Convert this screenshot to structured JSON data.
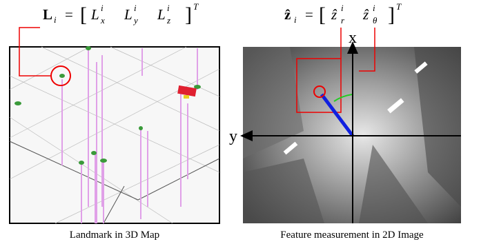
{
  "left_equation": {
    "lhs": "L",
    "lhs_sub": "i",
    "equals": "=",
    "open": "[",
    "close": "]",
    "transpose": "T",
    "elements": [
      {
        "base": "L",
        "sub": "x",
        "sup": "i"
      },
      {
        "base": "L",
        "sub": "y",
        "sup": "i"
      },
      {
        "base": "L",
        "sub": "z",
        "sup": "i"
      }
    ]
  },
  "right_equation": {
    "lhs": "ẑ",
    "lhs_sub": "i",
    "equals": "=",
    "open": "[",
    "close": "]",
    "transpose": "T",
    "elements": [
      {
        "base": "ẑ",
        "sub": "r",
        "sup": "i"
      },
      {
        "base": "ẑ",
        "sub": "θ",
        "sup": "i"
      }
    ]
  },
  "axes": {
    "x": "x",
    "y": "y"
  },
  "captions": {
    "left": "Landmark in 3D Map",
    "right": "Feature measurement in 2D Image"
  }
}
